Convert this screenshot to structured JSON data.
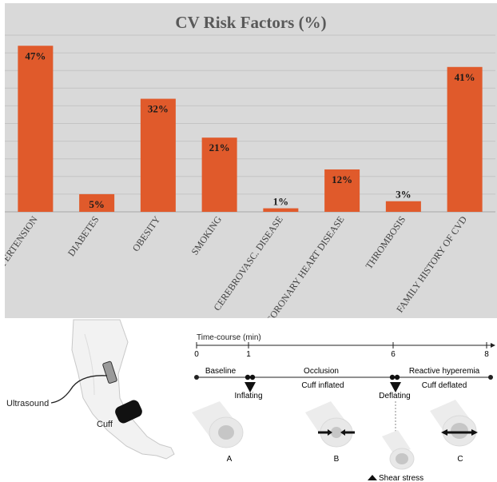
{
  "chart_data": {
    "type": "bar",
    "title": "CV Risk Factors  (%)",
    "categories": [
      "HYPERTENSION",
      "DIABETES",
      "OBESITY",
      "SMOKING",
      "CEREBROVASC. DISEASE",
      "CORONARY HEART DISEASE",
      "THROMBOSIS",
      "FAMILY HISTORY OF CVD"
    ],
    "values": [
      47,
      5,
      32,
      21,
      1,
      12,
      3,
      41
    ],
    "data_labels": [
      "47%",
      "5%",
      "32%",
      "21%",
      "1%",
      "12%",
      "3%",
      "41%"
    ],
    "ylim": [
      0,
      50
    ],
    "grid": true,
    "colors": {
      "bar": "#e05a2b",
      "background": "#d9d9d9",
      "grid": "#c4c4c4",
      "title": "#595959"
    }
  },
  "diagram": {
    "timeline_title": "Time-course (min)",
    "ticks": [
      "0",
      "1",
      "6",
      "8"
    ],
    "phases": [
      "Baseline",
      "Occlusion",
      "Reactive hyperemia"
    ],
    "events": [
      "Inflating",
      "Cuff inflated",
      "Deflating",
      "Cuff deflated"
    ],
    "labels": {
      "ultrasound": "Ultrasound",
      "cuff": "Cuff",
      "a": "A",
      "b": "B",
      "c": "C",
      "shear": "Shear stress"
    }
  }
}
